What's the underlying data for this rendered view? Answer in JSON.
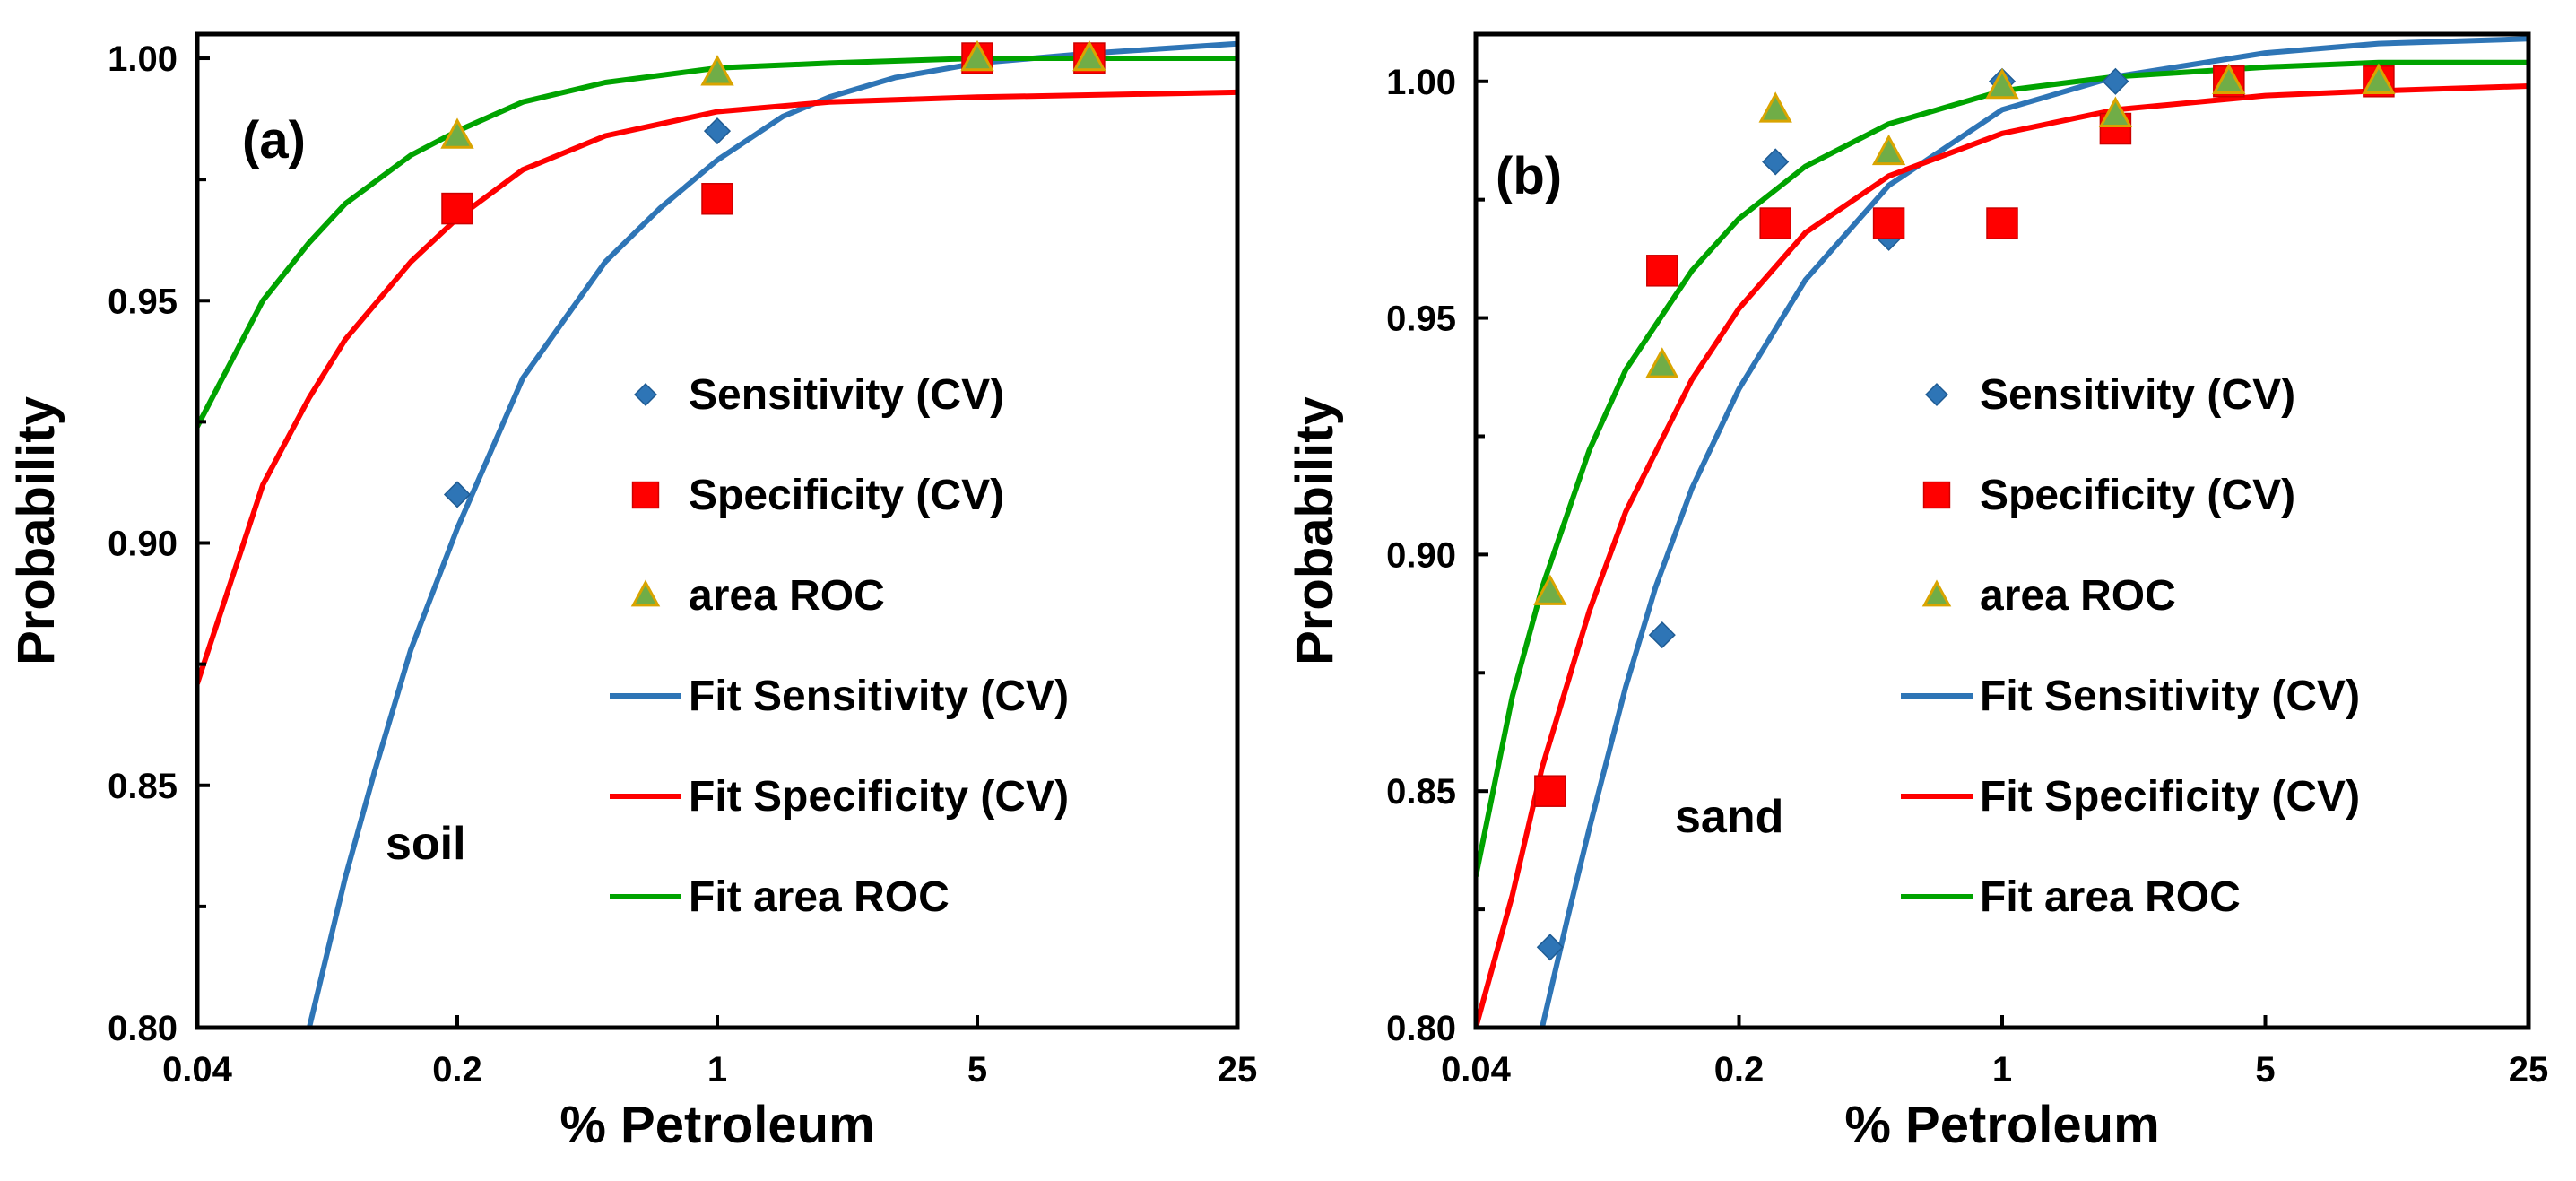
{
  "colors": {
    "sensitivity": "#2e75b6",
    "specificity": "#ff0000",
    "area_roc_fill": "#70ad47",
    "area_roc_edge": "#d9a400",
    "fit_area_roc": "#00a300",
    "axis": "#000000"
  },
  "chart_data": [
    {
      "type": "scatter",
      "panel_label": "(a)",
      "inner_label": "soil",
      "xlabel": "% Petroleum",
      "ylabel": "Probability",
      "xscale": "log",
      "xlim": [
        0.04,
        25
      ],
      "ylim": [
        0.8,
        1.005
      ],
      "xticks": [
        0.04,
        0.2,
        1,
        5,
        25
      ],
      "xtick_labels": [
        "0.04",
        "0.2",
        "1",
        "5",
        "25"
      ],
      "yticks": [
        0.8,
        0.85,
        0.9,
        0.95,
        1.0
      ],
      "ytick_labels": [
        "0.80",
        "0.85",
        "0.90",
        "0.95",
        "1.00"
      ],
      "legend_position": "center-right",
      "series": [
        {
          "name": "Sensitivity (CV)",
          "kind": "points",
          "marker": "diamond",
          "x": [
            0.2,
            1,
            5,
            10
          ],
          "y": [
            0.91,
            0.985,
            1.0,
            1.0
          ]
        },
        {
          "name": "Specificity (CV)",
          "kind": "points",
          "marker": "square",
          "x": [
            0.2,
            1,
            5,
            10
          ],
          "y": [
            0.969,
            0.971,
            1.0,
            1.0
          ]
        },
        {
          "name": "area ROC",
          "kind": "points",
          "marker": "triangle",
          "x": [
            0.2,
            1,
            5,
            10
          ],
          "y": [
            0.984,
            0.997,
            1.0,
            1.0
          ]
        },
        {
          "name": "Fit Sensitivity (CV)",
          "kind": "line",
          "x": [
            0.08,
            0.1,
            0.12,
            0.15,
            0.2,
            0.3,
            0.5,
            0.7,
            1,
            1.5,
            2,
            3,
            5,
            10,
            25
          ],
          "y": [
            0.8,
            0.831,
            0.853,
            0.878,
            0.903,
            0.934,
            0.958,
            0.969,
            0.979,
            0.988,
            0.992,
            0.996,
            0.999,
            1.001,
            1.003
          ]
        },
        {
          "name": "Fit Specificity (CV)",
          "kind": "line",
          "x": [
            0.04,
            0.06,
            0.08,
            0.1,
            0.15,
            0.2,
            0.3,
            0.5,
            1,
            2,
            5,
            25
          ],
          "y": [
            0.871,
            0.912,
            0.93,
            0.942,
            0.958,
            0.967,
            0.977,
            0.984,
            0.989,
            0.991,
            0.992,
            0.993
          ]
        },
        {
          "name": "Fit area ROC",
          "kind": "line",
          "x": [
            0.04,
            0.06,
            0.08,
            0.1,
            0.15,
            0.2,
            0.3,
            0.5,
            1,
            2,
            5,
            25
          ],
          "y": [
            0.924,
            0.95,
            0.962,
            0.97,
            0.98,
            0.985,
            0.991,
            0.995,
            0.998,
            0.999,
            1.0,
            1.0
          ]
        }
      ]
    },
    {
      "type": "scatter",
      "panel_label": "(b)",
      "inner_label": "sand",
      "xlabel": "%  Petroleum",
      "ylabel": "Probability",
      "xscale": "log",
      "xlim": [
        0.04,
        25
      ],
      "ylim": [
        0.8,
        1.01
      ],
      "xticks": [
        0.04,
        0.2,
        1,
        5,
        25
      ],
      "xtick_labels": [
        "0.04",
        "0.2",
        "1",
        "5",
        "25"
      ],
      "yticks": [
        0.8,
        0.85,
        0.9,
        0.95,
        1.0
      ],
      "ytick_labels": [
        "0.80",
        "0.85",
        "0.90",
        "0.95",
        "1.00"
      ],
      "legend_position": "center-right",
      "series": [
        {
          "name": "Sensitivity (CV)",
          "kind": "points",
          "marker": "diamond",
          "x": [
            0.063,
            0.125,
            0.25,
            0.5,
            1,
            2,
            4,
            10
          ],
          "y": [
            0.817,
            0.883,
            0.983,
            0.967,
            1.0,
            1.0,
            1.0,
            1.0
          ]
        },
        {
          "name": "Specificity (CV)",
          "kind": "points",
          "marker": "square",
          "x": [
            0.063,
            0.125,
            0.25,
            0.5,
            1,
            2,
            4,
            10
          ],
          "y": [
            0.85,
            0.96,
            0.97,
            0.97,
            0.97,
            0.99,
            1.0,
            1.0
          ]
        },
        {
          "name": "area ROC",
          "kind": "points",
          "marker": "triangle",
          "x": [
            0.063,
            0.125,
            0.25,
            0.5,
            1,
            2,
            4,
            10
          ],
          "y": [
            0.892,
            0.94,
            0.994,
            0.985,
            0.999,
            0.993,
            1.0,
            1.0
          ]
        },
        {
          "name": "Fit Sensitivity (CV)",
          "kind": "line",
          "x": [
            0.06,
            0.07,
            0.08,
            0.1,
            0.12,
            0.15,
            0.2,
            0.3,
            0.5,
            1,
            2,
            5,
            10,
            25
          ],
          "y": [
            0.8,
            0.823,
            0.842,
            0.872,
            0.893,
            0.914,
            0.935,
            0.958,
            0.978,
            0.994,
            1.001,
            1.006,
            1.008,
            1.009
          ]
        },
        {
          "name": "Fit Specificity (CV)",
          "kind": "line",
          "x": [
            0.04,
            0.05,
            0.06,
            0.08,
            0.1,
            0.15,
            0.2,
            0.3,
            0.5,
            1,
            2,
            5,
            10,
            25
          ],
          "y": [
            0.8,
            0.828,
            0.855,
            0.888,
            0.909,
            0.937,
            0.952,
            0.968,
            0.98,
            0.989,
            0.994,
            0.997,
            0.998,
            0.999
          ]
        },
        {
          "name": "Fit area ROC",
          "kind": "line",
          "x": [
            0.04,
            0.05,
            0.06,
            0.08,
            0.1,
            0.15,
            0.2,
            0.3,
            0.5,
            1,
            2,
            5,
            10,
            25
          ],
          "y": [
            0.832,
            0.87,
            0.893,
            0.922,
            0.939,
            0.96,
            0.971,
            0.982,
            0.991,
            0.998,
            1.001,
            1.003,
            1.004,
            1.004
          ]
        }
      ]
    }
  ]
}
